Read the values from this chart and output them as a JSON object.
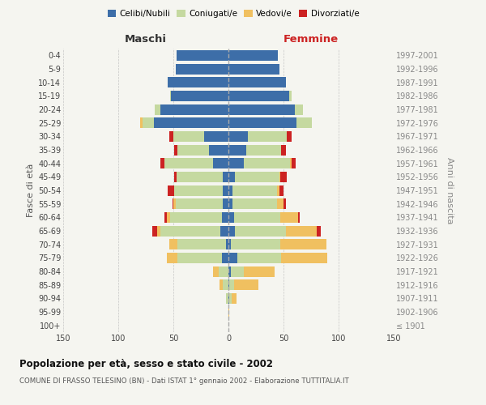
{
  "age_groups": [
    "100+",
    "95-99",
    "90-94",
    "85-89",
    "80-84",
    "75-79",
    "70-74",
    "65-69",
    "60-64",
    "55-59",
    "50-54",
    "45-49",
    "40-44",
    "35-39",
    "30-34",
    "25-29",
    "20-24",
    "15-19",
    "10-14",
    "5-9",
    "0-4"
  ],
  "birth_years": [
    "≤ 1901",
    "1902-1906",
    "1907-1911",
    "1912-1916",
    "1917-1921",
    "1922-1926",
    "1927-1931",
    "1932-1936",
    "1937-1941",
    "1942-1946",
    "1947-1951",
    "1952-1956",
    "1957-1961",
    "1962-1966",
    "1967-1971",
    "1972-1976",
    "1977-1981",
    "1982-1986",
    "1987-1991",
    "1992-1996",
    "1997-2001"
  ],
  "maschi": {
    "celibi": [
      0,
      0,
      0,
      0,
      0,
      6,
      2,
      7,
      6,
      5,
      5,
      5,
      14,
      18,
      22,
      68,
      62,
      52,
      55,
      48,
      47
    ],
    "coniugati": [
      0,
      0,
      2,
      5,
      9,
      40,
      44,
      55,
      47,
      43,
      44,
      42,
      44,
      28,
      28,
      10,
      5,
      1,
      0,
      0,
      0
    ],
    "vedovi": [
      0,
      0,
      0,
      3,
      5,
      10,
      8,
      3,
      3,
      2,
      0,
      0,
      0,
      0,
      0,
      2,
      0,
      0,
      0,
      0,
      0
    ],
    "divorziati": [
      0,
      0,
      0,
      0,
      0,
      0,
      0,
      4,
      2,
      1,
      6,
      2,
      4,
      3,
      4,
      0,
      0,
      0,
      0,
      0,
      0
    ]
  },
  "femmine": {
    "celibi": [
      0,
      0,
      1,
      1,
      2,
      8,
      2,
      6,
      5,
      4,
      4,
      6,
      14,
      16,
      18,
      62,
      60,
      55,
      52,
      46,
      45
    ],
    "coniugati": [
      0,
      0,
      2,
      4,
      12,
      40,
      45,
      46,
      42,
      40,
      40,
      40,
      42,
      32,
      35,
      14,
      8,
      2,
      0,
      0,
      0
    ],
    "vedovi": [
      0,
      1,
      4,
      22,
      28,
      42,
      42,
      28,
      16,
      6,
      2,
      1,
      1,
      0,
      0,
      0,
      0,
      0,
      0,
      0,
      0
    ],
    "divorziati": [
      0,
      0,
      0,
      0,
      0,
      0,
      0,
      4,
      2,
      2,
      4,
      6,
      4,
      4,
      4,
      0,
      0,
      0,
      0,
      0,
      0
    ]
  },
  "colors": {
    "celibi": "#3d6ea8",
    "coniugati": "#c5d9a0",
    "vedovi": "#f0c060",
    "divorziati": "#cc2222"
  },
  "title": "Popolazione per età, sesso e stato civile - 2002",
  "subtitle": "COMUNE DI FRASSO TELESINO (BN) - Dati ISTAT 1° gennaio 2002 - Elaborazione TUTTITALIA.IT",
  "xlabel_left": "Maschi",
  "xlabel_right": "Femmine",
  "ylabel_left": "Fasce di età",
  "ylabel_right": "Anni di nascita",
  "xlim": 150,
  "background_color": "#f5f5f0",
  "legend_labels": [
    "Celibi/Nubili",
    "Coniugati/e",
    "Vedovi/e",
    "Divorziati/e"
  ]
}
